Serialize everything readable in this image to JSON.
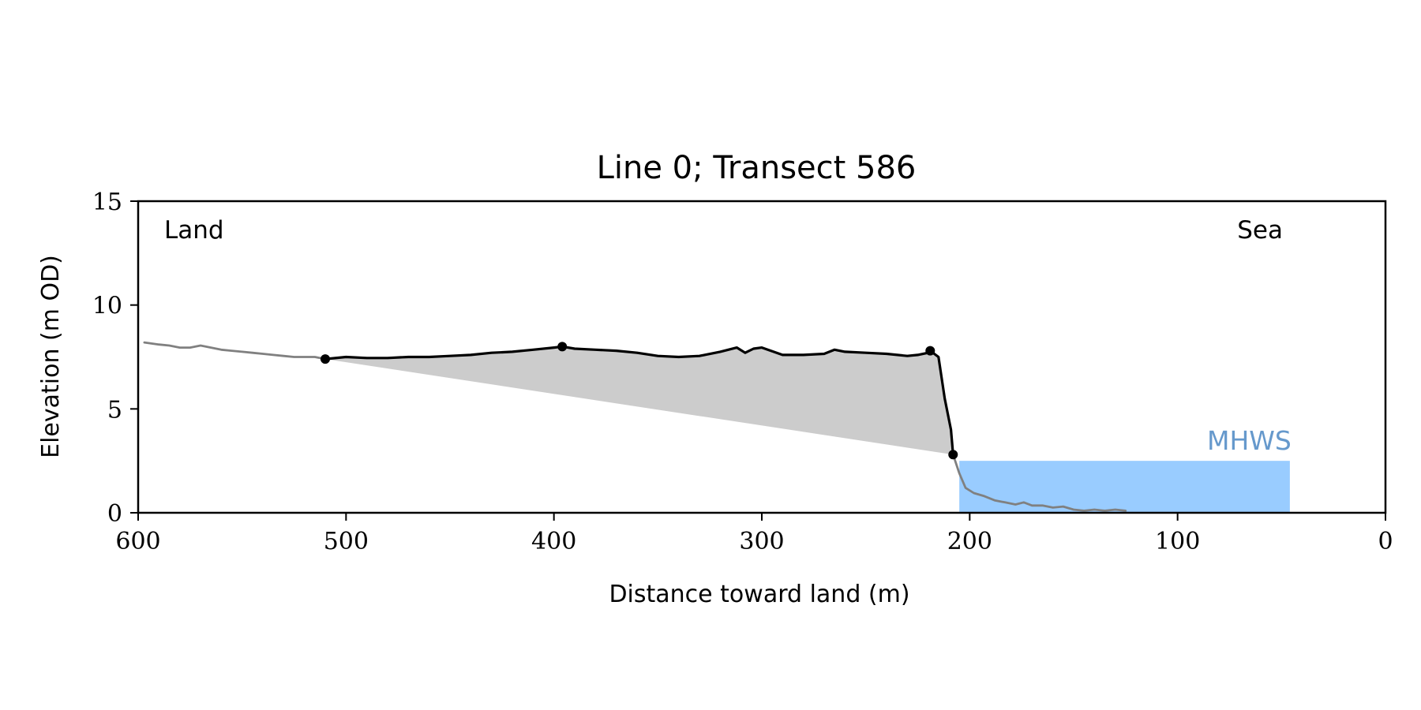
{
  "chart_data": {
    "type": "line",
    "title": "Line 0; Transect 586",
    "xlabel": "Distance toward land (m)",
    "ylabel": "Elevation (m OD)",
    "xlim": [
      600,
      0
    ],
    "ylim": [
      0,
      15
    ],
    "xticks": [
      600,
      500,
      400,
      300,
      200,
      100,
      0
    ],
    "yticks": [
      0,
      5,
      10,
      15
    ],
    "grid": false,
    "annotations": {
      "left": "Land",
      "right": "Sea",
      "mhws": "MHWS"
    },
    "mhws_elevation": 2.5,
    "mhws_x_range": [
      205,
      46
    ],
    "colors": {
      "profile": "#808080",
      "cliff": "#000000",
      "fill": "#cccccc",
      "mhws_fill": "#99ccff",
      "mhws_text": "#6699cc"
    },
    "series": [
      {
        "name": "",
        "x": [
          597,
          590,
          585,
          580,
          575,
          570,
          565,
          560,
          555,
          550,
          545,
          540,
          535,
          530,
          525,
          520,
          515,
          510
        ],
        "y": [
          8.2,
          8.1,
          8.05,
          7.95,
          7.95,
          8.05,
          7.95,
          7.85,
          7.8,
          7.75,
          7.7,
          7.65,
          7.6,
          7.55,
          7.5,
          7.5,
          7.5,
          7.4
        ]
      },
      {
        "name": "",
        "x": [
          510,
          500,
          490,
          480,
          470,
          460,
          450,
          440,
          430,
          420,
          410,
          400,
          396,
          390,
          380,
          370,
          360,
          350,
          340,
          330,
          320,
          312,
          308,
          304,
          300,
          290,
          280,
          270,
          265,
          260,
          250,
          240,
          230,
          225,
          220,
          219,
          215,
          212,
          209,
          208
        ],
        "y": [
          7.4,
          7.5,
          7.45,
          7.45,
          7.5,
          7.5,
          7.55,
          7.6,
          7.7,
          7.75,
          7.85,
          7.95,
          8.0,
          7.9,
          7.85,
          7.8,
          7.7,
          7.55,
          7.5,
          7.55,
          7.75,
          7.95,
          7.7,
          7.9,
          7.95,
          7.6,
          7.6,
          7.65,
          7.85,
          7.75,
          7.7,
          7.65,
          7.55,
          7.6,
          7.7,
          7.8,
          7.5,
          5.5,
          4.0,
          2.8
        ]
      },
      {
        "name": "",
        "x": [
          208,
          205,
          202,
          198,
          193,
          188,
          183,
          178,
          174,
          170,
          165,
          160,
          155,
          150,
          145,
          140,
          135,
          130,
          125
        ],
        "y": [
          2.8,
          1.9,
          1.2,
          0.95,
          0.8,
          0.6,
          0.5,
          0.4,
          0.5,
          0.35,
          0.35,
          0.25,
          0.3,
          0.15,
          0.1,
          0.15,
          0.1,
          0.15,
          0.1
        ]
      }
    ],
    "points": [
      {
        "x": 510,
        "y": 7.4
      },
      {
        "x": 396,
        "y": 8.0
      },
      {
        "x": 219,
        "y": 7.8
      },
      {
        "x": 208,
        "y": 2.8
      }
    ]
  }
}
